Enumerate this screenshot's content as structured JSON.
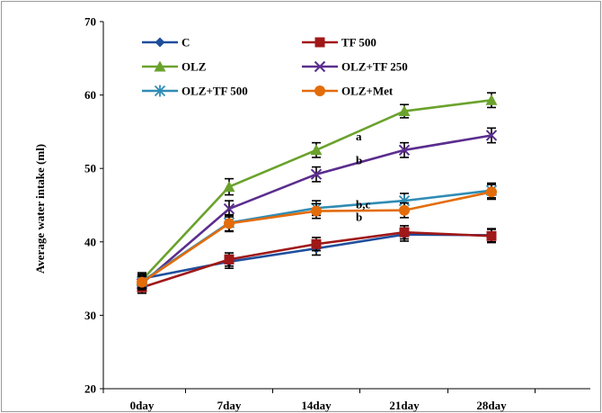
{
  "chart_data": {
    "type": "line",
    "title": "",
    "xlabel": "",
    "ylabel": "Average  water intake (ml)",
    "ylim": [
      20,
      70
    ],
    "yticks": [
      20,
      30,
      40,
      50,
      60,
      70
    ],
    "categories": [
      "0day",
      "7day",
      "14day",
      "21day",
      "28day"
    ],
    "legend_position": "top, two columns",
    "grid": false,
    "series": [
      {
        "name": "C",
        "color": "#1f4e9c",
        "marker": "diamond",
        "values": [
          35.0,
          37.3,
          39.1,
          41.0,
          40.9
        ],
        "errors": [
          0.8,
          0.9,
          0.9,
          0.9,
          0.9
        ]
      },
      {
        "name": "TF 500",
        "color": "#a01818",
        "marker": "square",
        "values": [
          33.8,
          37.6,
          39.7,
          41.3,
          40.8
        ],
        "errors": [
          0.8,
          0.9,
          0.9,
          0.9,
          0.9
        ]
      },
      {
        "name": "OLZ",
        "color": "#6aa22c",
        "marker": "triangle",
        "values": [
          34.8,
          47.5,
          52.5,
          57.8,
          59.3
        ],
        "errors": [
          0.8,
          1.1,
          1.0,
          0.9,
          1.0
        ]
      },
      {
        "name": "OLZ+TF 250",
        "color": "#5b2d8e",
        "marker": "x",
        "values": [
          34.3,
          44.5,
          49.2,
          52.5,
          54.5
        ],
        "errors": [
          0.8,
          1.1,
          1.0,
          1.0,
          1.0
        ]
      },
      {
        "name": "OLZ+TF 500",
        "color": "#2f8cb5",
        "marker": "asterisk",
        "values": [
          34.6,
          42.6,
          44.6,
          45.6,
          47.0
        ],
        "errors": [
          0.8,
          1.1,
          1.0,
          1.0,
          1.0
        ]
      },
      {
        "name": "OLZ+Met",
        "color": "#e36c0a",
        "marker": "circle",
        "values": [
          34.5,
          42.5,
          44.2,
          44.3,
          46.8
        ],
        "errors": [
          0.8,
          1.1,
          1.0,
          1.0,
          1.0
        ]
      }
    ],
    "annotations": [
      {
        "text": "a",
        "category": "14day",
        "y": 54.4
      },
      {
        "text": "b",
        "category": "14day",
        "y": 51.1
      },
      {
        "text": "b,c",
        "category": "14day",
        "y": 45.1
      },
      {
        "text": "b",
        "category": "14day",
        "y": 43.4
      }
    ]
  }
}
